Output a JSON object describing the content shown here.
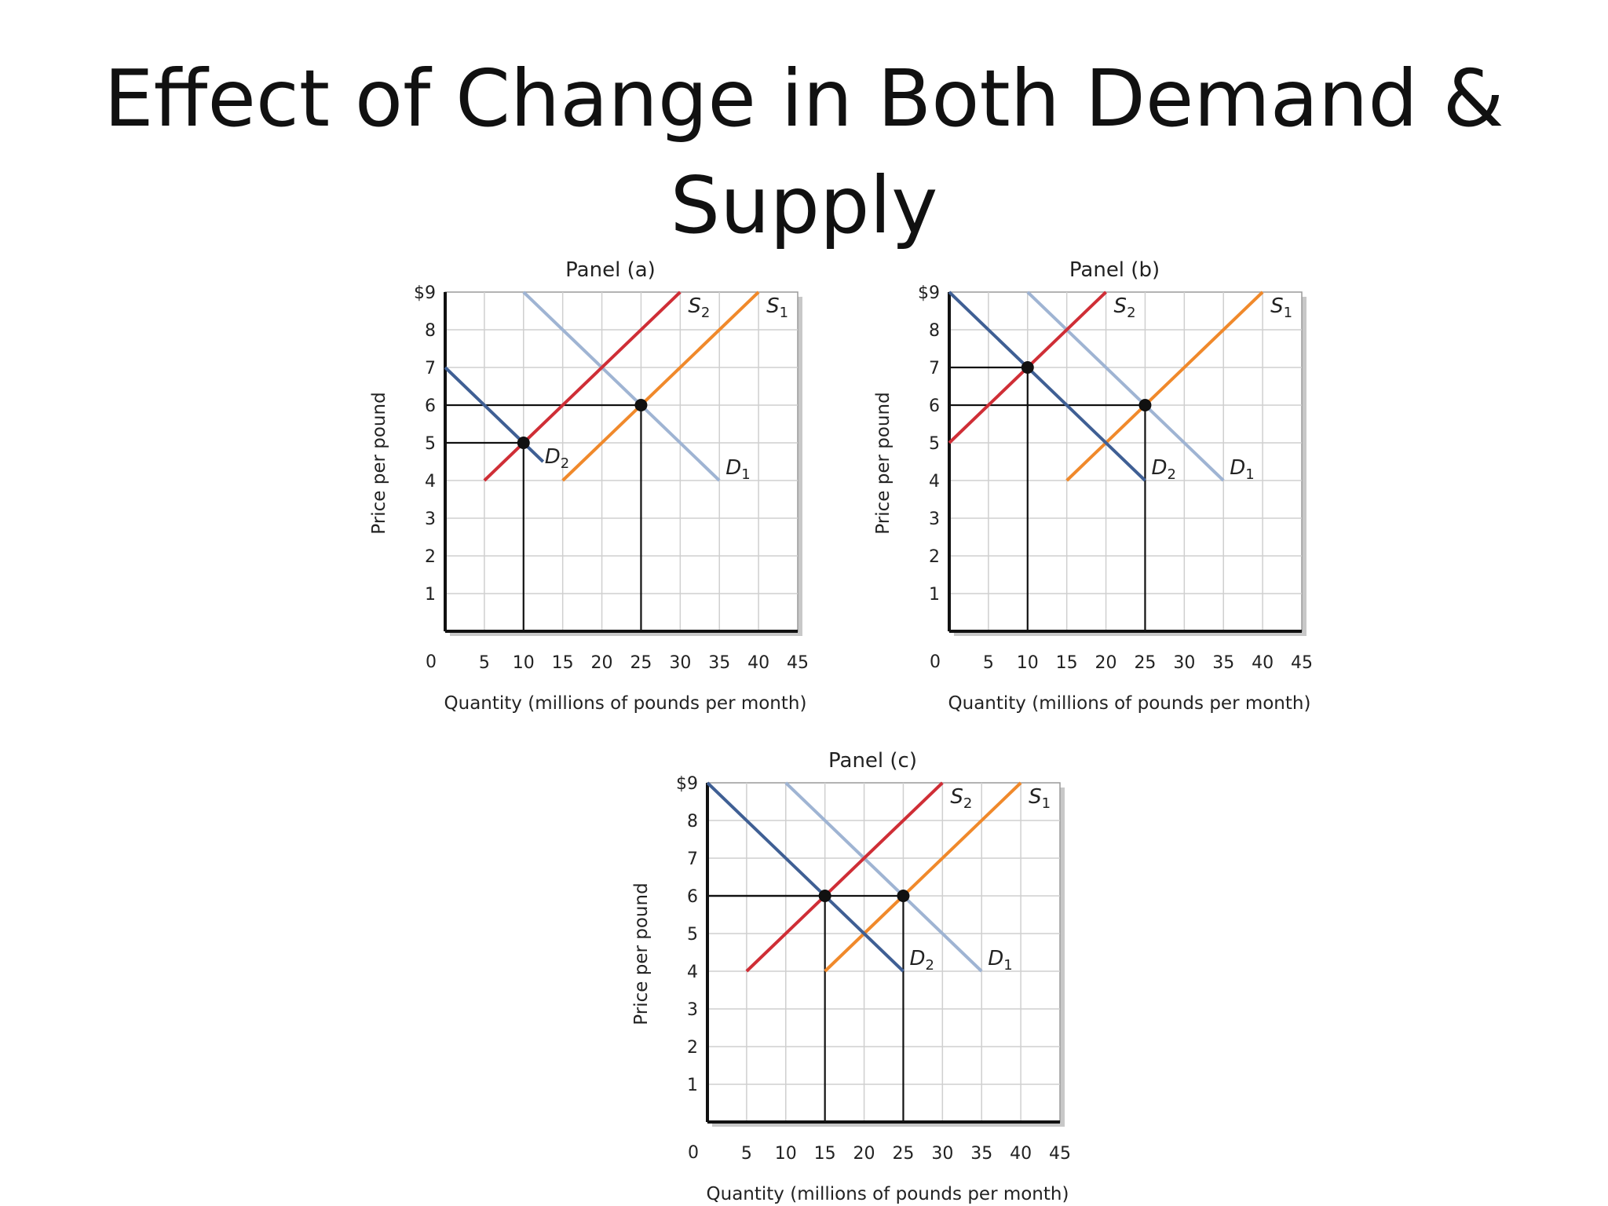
{
  "slide": {
    "title_line1": "Effect of Change in Both Demand &",
    "title_line2": "Supply"
  },
  "colors": {
    "S1": "#f0892b",
    "S2": "#cf2e36",
    "D1": "#9fb4d3",
    "D2": "#3f5f94",
    "grid": "#cfcfcf",
    "guide": "#111111"
  },
  "chart_data": [
    {
      "type": "line",
      "title": "Panel (a)",
      "xlabel": "Quantity (millions of pounds per month)",
      "ylabel": "Price per pound",
      "xlim": [
        0,
        45
      ],
      "ylim": [
        0,
        9
      ],
      "x_ticks": [
        "0",
        "5",
        "10",
        "15",
        "20",
        "25",
        "30",
        "35",
        "40",
        "45"
      ],
      "y_ticks": [
        "1",
        "2",
        "3",
        "4",
        "5",
        "6",
        "7",
        "8",
        "$9"
      ],
      "grid": true,
      "series": [
        {
          "name": "S",
          "sub": "1",
          "color_key": "S1",
          "points": [
            [
              15,
              4
            ],
            [
              40,
              9
            ]
          ]
        },
        {
          "name": "S",
          "sub": "2",
          "color_key": "S2",
          "points": [
            [
              5,
              4
            ],
            [
              30,
              9
            ]
          ]
        },
        {
          "name": "D",
          "sub": "1",
          "color_key": "D1",
          "points": [
            [
              10,
              9
            ],
            [
              35,
              4
            ]
          ]
        },
        {
          "name": "D",
          "sub": "2",
          "color_key": "D2",
          "points": [
            [
              0,
              7
            ],
            [
              12.5,
              4.5
            ]
          ]
        }
      ],
      "equilibria": [
        [
          10,
          5
        ],
        [
          25,
          6
        ]
      ]
    },
    {
      "type": "line",
      "title": "Panel (b)",
      "xlabel": "Quantity (millions of pounds per month)",
      "ylabel": "Price per pound",
      "xlim": [
        0,
        45
      ],
      "ylim": [
        0,
        9
      ],
      "x_ticks": [
        "0",
        "5",
        "10",
        "15",
        "20",
        "25",
        "30",
        "35",
        "40",
        "45"
      ],
      "y_ticks": [
        "1",
        "2",
        "3",
        "4",
        "5",
        "6",
        "7",
        "8",
        "$9"
      ],
      "grid": true,
      "series": [
        {
          "name": "S",
          "sub": "1",
          "color_key": "S1",
          "points": [
            [
              15,
              4
            ],
            [
              40,
              9
            ]
          ]
        },
        {
          "name": "S",
          "sub": "2",
          "color_key": "S2",
          "points": [
            [
              0,
              5
            ],
            [
              20,
              9
            ]
          ]
        },
        {
          "name": "D",
          "sub": "1",
          "color_key": "D1",
          "points": [
            [
              10,
              9
            ],
            [
              35,
              4
            ]
          ]
        },
        {
          "name": "D",
          "sub": "2",
          "color_key": "D2",
          "points": [
            [
              0,
              9
            ],
            [
              25,
              4
            ]
          ]
        }
      ],
      "equilibria": [
        [
          10,
          7
        ],
        [
          25,
          6
        ]
      ]
    },
    {
      "type": "line",
      "title": "Panel (c)",
      "xlabel": "Quantity (millions of pounds per month)",
      "ylabel": "Price per pound",
      "xlim": [
        0,
        45
      ],
      "ylim": [
        0,
        9
      ],
      "x_ticks": [
        "0",
        "5",
        "10",
        "15",
        "20",
        "25",
        "30",
        "35",
        "40",
        "45"
      ],
      "y_ticks": [
        "1",
        "2",
        "3",
        "4",
        "5",
        "6",
        "7",
        "8",
        "$9"
      ],
      "grid": true,
      "series": [
        {
          "name": "S",
          "sub": "1",
          "color_key": "S1",
          "points": [
            [
              15,
              4
            ],
            [
              40,
              9
            ]
          ]
        },
        {
          "name": "S",
          "sub": "2",
          "color_key": "S2",
          "points": [
            [
              5,
              4
            ],
            [
              30,
              9
            ]
          ]
        },
        {
          "name": "D",
          "sub": "1",
          "color_key": "D1",
          "points": [
            [
              10,
              9
            ],
            [
              35,
              4
            ]
          ]
        },
        {
          "name": "D",
          "sub": "2",
          "color_key": "D2",
          "points": [
            [
              0,
              9
            ],
            [
              25,
              4
            ]
          ]
        }
      ],
      "equilibria": [
        [
          15,
          6
        ],
        [
          25,
          6
        ]
      ]
    }
  ]
}
